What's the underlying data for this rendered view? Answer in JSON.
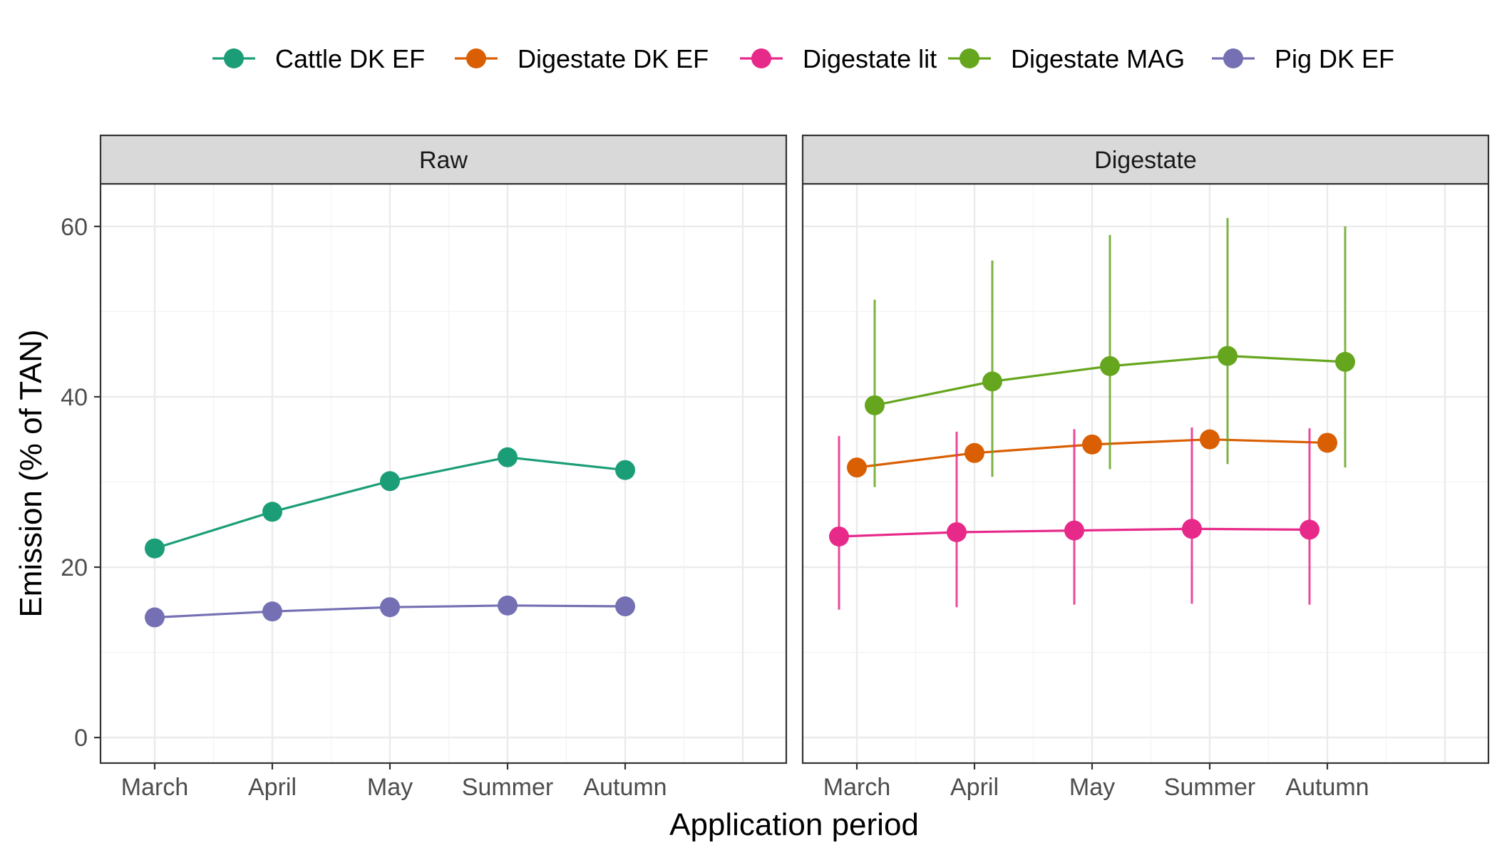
{
  "chart_data": {
    "type": "line",
    "ylabel": "Emission (% of TAN)",
    "xlabel": "Application period",
    "categories": [
      "March",
      "April",
      "May",
      "Summer",
      "Autumn"
    ],
    "ylim": [
      -3,
      65
    ],
    "yticks": [
      0,
      20,
      40,
      60
    ],
    "grid": true,
    "legend_position": "top",
    "legend": [
      {
        "name": "Cattle DK EF",
        "color": "#1b9e77"
      },
      {
        "name": "Digestate DK EF",
        "color": "#d95f02"
      },
      {
        "name": "Digestate lit",
        "color": "#e7298a"
      },
      {
        "name": "Digestate MAG",
        "color": "#66a61e"
      },
      {
        "name": "Pig DK EF",
        "color": "#7570b3"
      }
    ],
    "panels": [
      {
        "title": "Raw",
        "series": [
          {
            "name": "Cattle DK EF",
            "color": "#1b9e77",
            "values": [
              22.2,
              26.5,
              30.1,
              32.9,
              31.4
            ]
          },
          {
            "name": "Pig DK EF",
            "color": "#7570b3",
            "values": [
              14.1,
              14.8,
              15.3,
              15.5,
              15.4
            ]
          }
        ]
      },
      {
        "title": "Digestate",
        "series": [
          {
            "name": "Digestate DK EF",
            "color": "#d95f02",
            "values": [
              31.7,
              33.4,
              34.4,
              35.0,
              34.6
            ]
          },
          {
            "name": "Digestate lit",
            "color": "#e7298a",
            "values": [
              23.6,
              24.1,
              24.3,
              24.5,
              24.4
            ],
            "lower": [
              15.0,
              15.3,
              15.6,
              15.7,
              15.6
            ],
            "upper": [
              35.4,
              35.9,
              36.2,
              36.4,
              36.3
            ]
          },
          {
            "name": "Digestate MAG",
            "color": "#66a61e",
            "values": [
              39.0,
              41.8,
              43.6,
              44.8,
              44.1
            ],
            "lower": [
              29.4,
              30.6,
              31.5,
              32.1,
              31.7
            ],
            "upper": [
              51.4,
              56.0,
              59.0,
              61.0,
              60.0
            ]
          }
        ]
      }
    ]
  }
}
